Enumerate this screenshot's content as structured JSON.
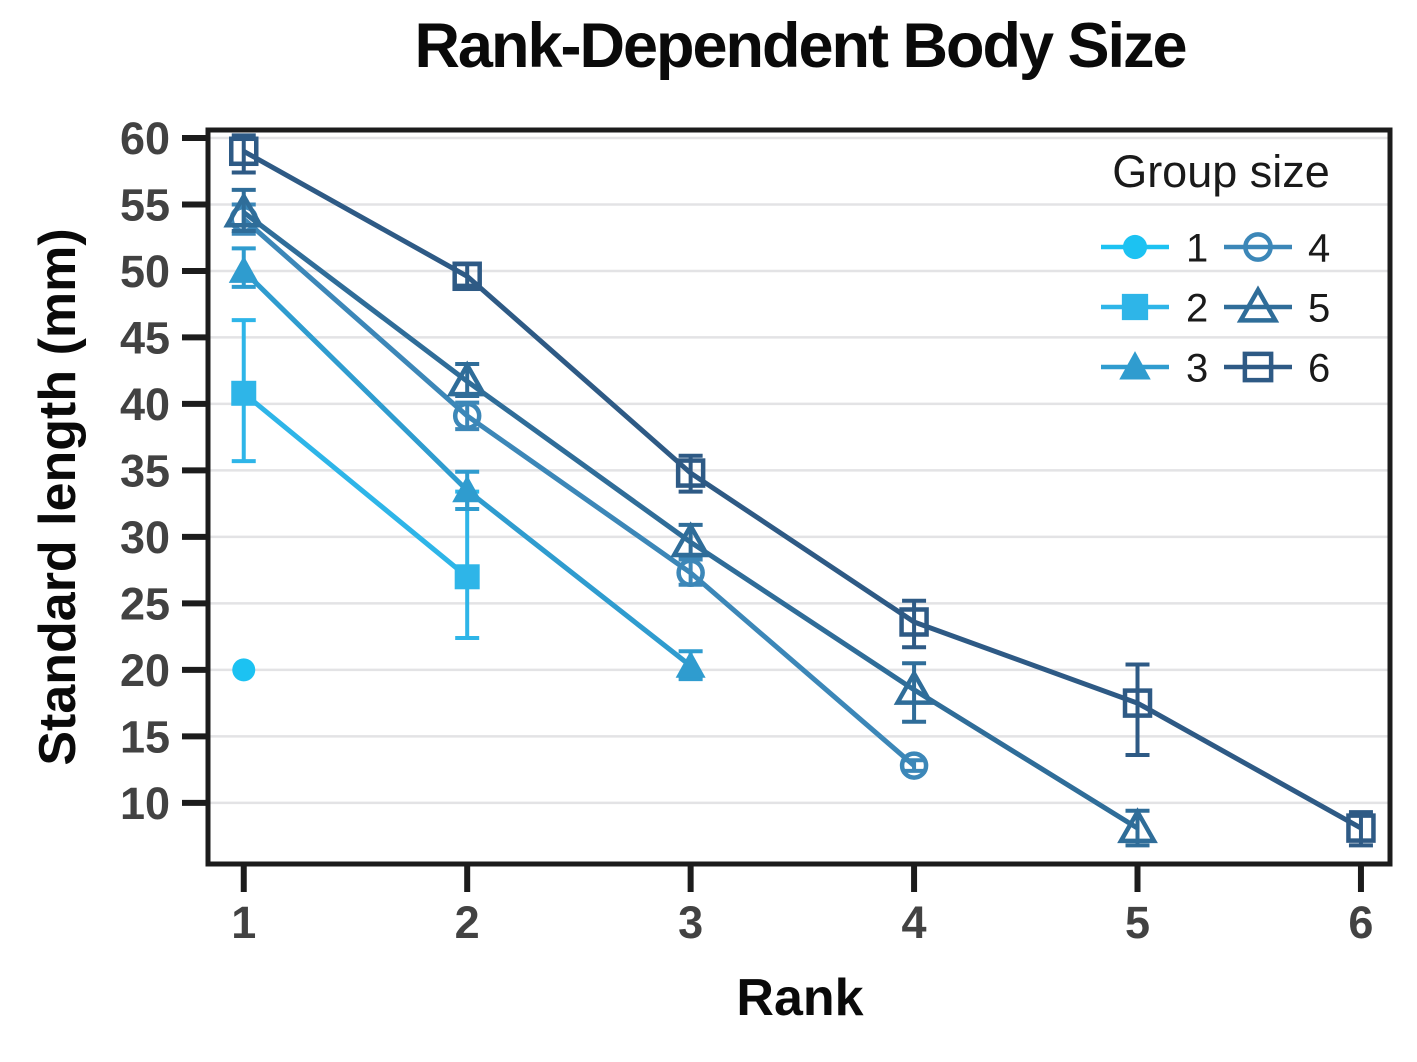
{
  "chart_data": {
    "type": "line",
    "title": "Rank-Dependent Body Size",
    "xlabel": "Rank",
    "ylabel": "Standard length (mm)",
    "xlim": [
      0.84,
      6.13
    ],
    "ylim": [
      5.4,
      60.6
    ],
    "xticks": [
      "1",
      "2",
      "3",
      "4",
      "5",
      "6"
    ],
    "yticks": [
      10,
      15,
      20,
      25,
      30,
      35,
      40,
      45,
      50,
      55,
      60
    ],
    "grid": "horizontal-only",
    "grid_color": "#e3e3e5",
    "axis_color": "#1c1c1c",
    "tick_label_color": "#424242",
    "legend": {
      "title": "Group size",
      "position": "upper-right-inside",
      "columns": 2,
      "entries": [
        "1",
        "2",
        "3",
        "4",
        "5",
        "6"
      ]
    },
    "series": [
      {
        "name": "1",
        "label": "1",
        "color": "#1cc2f2",
        "marker": "circle",
        "fill": "solid",
        "points": [
          {
            "x": 1,
            "y": 20.0,
            "lo": 20.0,
            "hi": 20.0
          }
        ]
      },
      {
        "name": "2",
        "label": "2",
        "color": "#2eb5e8",
        "marker": "square",
        "fill": "solid",
        "points": [
          {
            "x": 1,
            "y": 40.8,
            "lo": 35.7,
            "hi": 46.3
          },
          {
            "x": 2,
            "y": 27.0,
            "lo": 22.4,
            "hi": 33.4
          }
        ]
      },
      {
        "name": "3",
        "label": "3",
        "color": "#2f9ccf",
        "marker": "triangle",
        "fill": "solid",
        "points": [
          {
            "x": 1,
            "y": 50.0,
            "lo": 48.8,
            "hi": 51.7
          },
          {
            "x": 2,
            "y": 33.5,
            "lo": 32.1,
            "hi": 34.9
          },
          {
            "x": 3,
            "y": 20.3,
            "lo": 19.3,
            "hi": 21.4
          }
        ]
      },
      {
        "name": "4",
        "label": "4",
        "color": "#3c87b8",
        "marker": "circle",
        "fill": "open",
        "points": [
          {
            "x": 1,
            "y": 53.9,
            "lo": 52.8,
            "hi": 55.0
          },
          {
            "x": 2,
            "y": 39.1,
            "lo": 38.1,
            "hi": 40.1
          },
          {
            "x": 3,
            "y": 27.3,
            "lo": 26.4,
            "hi": 28.3
          },
          {
            "x": 4,
            "y": 12.8,
            "lo": 12.4,
            "hi": 13.2
          }
        ]
      },
      {
        "name": "5",
        "label": "5",
        "color": "#2f6d99",
        "marker": "triangle",
        "fill": "open",
        "points": [
          {
            "x": 1,
            "y": 54.4,
            "lo": 53.0,
            "hi": 56.1
          },
          {
            "x": 2,
            "y": 41.7,
            "lo": 40.6,
            "hi": 43.0
          },
          {
            "x": 3,
            "y": 29.6,
            "lo": 28.6,
            "hi": 30.9
          },
          {
            "x": 4,
            "y": 18.5,
            "lo": 16.1,
            "hi": 20.5
          },
          {
            "x": 5,
            "y": 8.1,
            "lo": 6.8,
            "hi": 9.4
          }
        ]
      },
      {
        "name": "6",
        "label": "6",
        "color": "#2e5a85",
        "marker": "square",
        "fill": "open",
        "points": [
          {
            "x": 1,
            "y": 59.0,
            "lo": 57.4,
            "hi": 60.2
          },
          {
            "x": 2,
            "y": 49.6,
            "lo": 48.9,
            "hi": 50.5
          },
          {
            "x": 3,
            "y": 34.8,
            "lo": 33.4,
            "hi": 36.1
          },
          {
            "x": 4,
            "y": 23.6,
            "lo": 21.7,
            "hi": 25.2
          },
          {
            "x": 5,
            "y": 17.5,
            "lo": 13.6,
            "hi": 20.4
          },
          {
            "x": 6,
            "y": 8.1,
            "lo": 6.8,
            "hi": 9.3
          }
        ]
      }
    ]
  }
}
